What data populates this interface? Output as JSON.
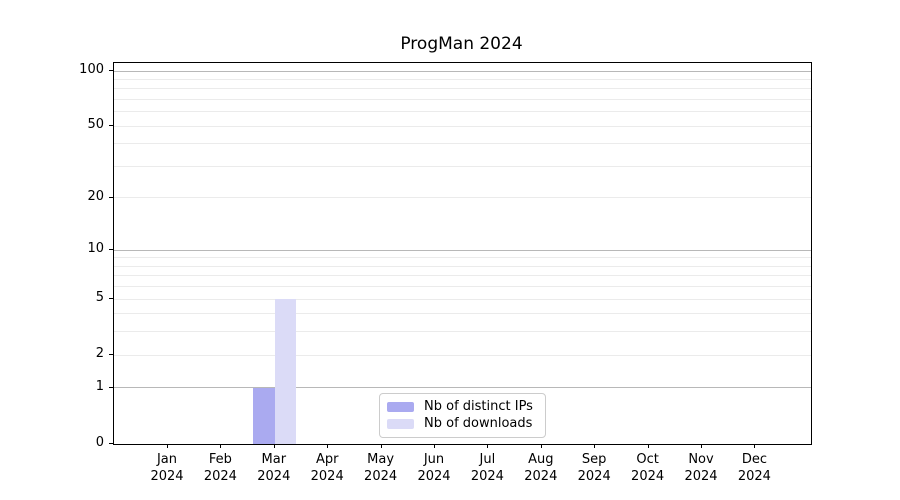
{
  "figure": {
    "background": "#ffffff"
  },
  "chart_data": {
    "type": "bar",
    "title": "ProgMan 2024",
    "categories": [
      "Jan",
      "Feb",
      "Mar",
      "Apr",
      "May",
      "Jun",
      "Jul",
      "Aug",
      "Sep",
      "Oct",
      "Nov",
      "Dec"
    ],
    "category_sublabel": "2024",
    "series": [
      {
        "name": "Nb of distinct IPs",
        "color": "#aaaaf0",
        "values": [
          0,
          0,
          1,
          0,
          0,
          0,
          0,
          0,
          0,
          0,
          0,
          0
        ]
      },
      {
        "name": "Nb of downloads",
        "color": "#dbdbf7",
        "values": [
          0,
          0,
          5,
          0,
          0,
          0,
          0,
          0,
          0,
          0,
          0,
          0
        ]
      }
    ],
    "xlabel": "",
    "ylabel": "",
    "yaxis": {
      "scale": "log1p",
      "range": [
        0,
        100
      ],
      "tick_values": [
        0,
        1,
        2,
        5,
        10,
        20,
        50,
        100
      ],
      "tick_labels": [
        "0",
        "1",
        "2",
        "5",
        "10",
        "20",
        "50",
        "100"
      ],
      "major_grid_values": [
        1,
        10,
        100
      ],
      "minor_grid_values": [
        2,
        3,
        4,
        5,
        6,
        7,
        8,
        9,
        20,
        30,
        40,
        50,
        60,
        70,
        80,
        90
      ],
      "major_grid_color": "#b8b8b8",
      "minor_grid_color": "#ebebeb"
    },
    "legend": {
      "position": "lower center",
      "entries": [
        "Nb of distinct IPs",
        "Nb of downloads"
      ]
    },
    "grid": true
  }
}
